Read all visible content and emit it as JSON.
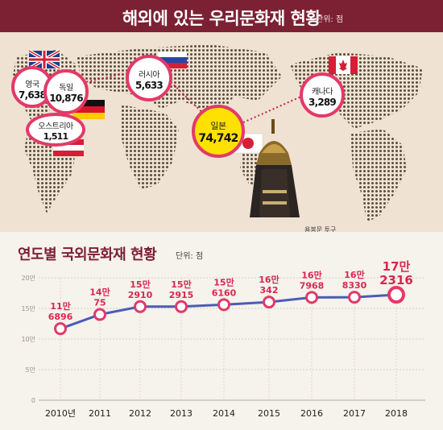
{
  "header": {
    "title": "해외에 있는 우리문화재 현황",
    "unit": "단위: 점"
  },
  "map": {
    "countries": [
      {
        "name": "영국",
        "value": "7,638"
      },
      {
        "name": "독일",
        "value": "10,876"
      },
      {
        "name": "오스트리아",
        "value": "1,511"
      },
      {
        "name": "러시아",
        "value": "5,633"
      },
      {
        "name": "일본",
        "value": "74,742"
      },
      {
        "name": "캐나다",
        "value": "3,289"
      }
    ],
    "caption": "용봉문 투구",
    "colors": {
      "bubble_border": "#e23a68",
      "japan_fill": "#ffe100",
      "header": "#7b2133"
    }
  },
  "chart_title": "연도별 국외문화재 현황",
  "chart_unit": "단위: 점",
  "chart_data": {
    "type": "line",
    "title": "연도별 국외문화재 현황",
    "unit": "단위: 점",
    "categories": [
      "2010년",
      "2011",
      "2012",
      "2013",
      "2014",
      "2015",
      "2016",
      "2017",
      "2018"
    ],
    "values": [
      116896,
      140075,
      152910,
      152915,
      156160,
      160342,
      167968,
      168330,
      172316
    ],
    "data_labels": [
      [
        "11만",
        "6896"
      ],
      [
        "14만",
        "75"
      ],
      [
        "15만",
        "2910"
      ],
      [
        "15만",
        "2915"
      ],
      [
        "15만",
        "6160"
      ],
      [
        "16만",
        "342"
      ],
      [
        "16만",
        "7968"
      ],
      [
        "16만",
        "8330"
      ],
      [
        "17만",
        "2316"
      ]
    ],
    "yticks": [
      {
        "label": "0",
        "value": 0
      },
      {
        "label": "5만",
        "value": 50000
      },
      {
        "label": "10만",
        "value": 100000
      },
      {
        "label": "15만",
        "value": 150000
      },
      {
        "label": "20만",
        "value": 200000
      }
    ],
    "ylim": [
      0,
      200000
    ],
    "grid": true,
    "line_color": "#4b5bb5",
    "marker_color": "#e23a68",
    "label_color": "#d62850"
  }
}
